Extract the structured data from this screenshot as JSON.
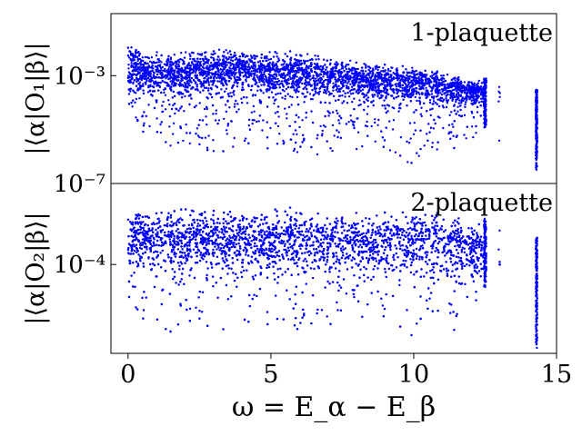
{
  "chart_data": [
    {
      "type": "scatter",
      "panel_label": "1-plaquette",
      "ylabel": "|⟨α|O₁|β⟩|",
      "xlabel": "",
      "yscale": "log",
      "ylim": [
        1e-07,
        0.2
      ],
      "xlim": [
        -0.6,
        15.0
      ],
      "yticks": [
        {
          "value": 1e-07,
          "label": "10⁻⁷"
        },
        {
          "value": 0.001,
          "label": "10⁻³"
        }
      ],
      "series": [
        {
          "color": "#0000ff",
          "envelope": [
            {
              "x": 0.0,
              "top": 0.05,
              "mid": 0.003,
              "bottom": 3e-05
            },
            {
              "x": 0.5,
              "top": 0.012,
              "mid": 0.0015,
              "bottom": 5e-06
            },
            {
              "x": 1.5,
              "top": 0.01,
              "mid": 0.0013,
              "bottom": 2e-06
            },
            {
              "x": 2.5,
              "top": 0.013,
              "mid": 0.0015,
              "bottom": 8e-07
            },
            {
              "x": 4.0,
              "top": 0.015,
              "mid": 0.002,
              "bottom": 2e-06
            },
            {
              "x": 5.0,
              "top": 0.012,
              "mid": 0.0015,
              "bottom": 1e-06
            },
            {
              "x": 6.5,
              "top": 0.01,
              "mid": 0.0012,
              "bottom": 8e-07
            },
            {
              "x": 8.0,
              "top": 0.005,
              "mid": 0.0008,
              "bottom": 6e-07
            },
            {
              "x": 9.5,
              "top": 0.004,
              "mid": 0.0006,
              "bottom": 5e-07
            },
            {
              "x": 11.0,
              "top": 0.002,
              "mid": 0.0004,
              "bottom": 4e-07
            },
            {
              "x": 12.5,
              "top": 0.0008,
              "mid": 0.00025,
              "bottom": 1e-05
            },
            {
              "x": 14.3,
              "top": 0.0003,
              "mid": 4e-05,
              "bottom": 3e-07
            }
          ]
        }
      ]
    },
    {
      "type": "scatter",
      "panel_label": "2-plaquette",
      "ylabel": "|⟨α|O₂|β⟩|",
      "xlabel": "ω = E_α − E_β",
      "yscale": "log",
      "ylim": [
        3e-07,
        0.02
      ],
      "xlim": [
        -0.6,
        15.0
      ],
      "yticks": [
        {
          "value": 0.0001,
          "label": "10⁻⁴"
        }
      ],
      "xticks": [
        {
          "value": 0,
          "label": "0"
        },
        {
          "value": 5,
          "label": "5"
        },
        {
          "value": 10,
          "label": "10"
        },
        {
          "value": 15,
          "label": "15"
        }
      ],
      "series": [
        {
          "color": "#0000ff",
          "envelope": [
            {
              "x": 0.0,
              "top": 0.006,
              "mid": 0.0007,
              "bottom": 3e-06
            },
            {
              "x": 1.0,
              "top": 0.006,
              "mid": 0.0006,
              "bottom": 1e-06
            },
            {
              "x": 2.5,
              "top": 0.006,
              "mid": 0.0006,
              "bottom": 1e-06
            },
            {
              "x": 4.0,
              "top": 0.006,
              "mid": 0.0006,
              "bottom": 1.5e-06
            },
            {
              "x": 5.5,
              "top": 0.006,
              "mid": 0.0006,
              "bottom": 1e-06
            },
            {
              "x": 7.0,
              "top": 0.005,
              "mid": 0.0005,
              "bottom": 8e-07
            },
            {
              "x": 8.5,
              "top": 0.006,
              "mid": 0.0005,
              "bottom": 1e-06
            },
            {
              "x": 10.0,
              "top": 0.006,
              "mid": 0.0005,
              "bottom": 8e-07
            },
            {
              "x": 11.5,
              "top": 0.005,
              "mid": 0.0004,
              "bottom": 6e-07
            },
            {
              "x": 12.5,
              "top": 0.002,
              "mid": 0.0003,
              "bottom": 2e-05
            },
            {
              "x": 14.3,
              "top": 0.0006,
              "mid": 5e-05,
              "bottom": 4e-07
            }
          ]
        }
      ]
    }
  ]
}
